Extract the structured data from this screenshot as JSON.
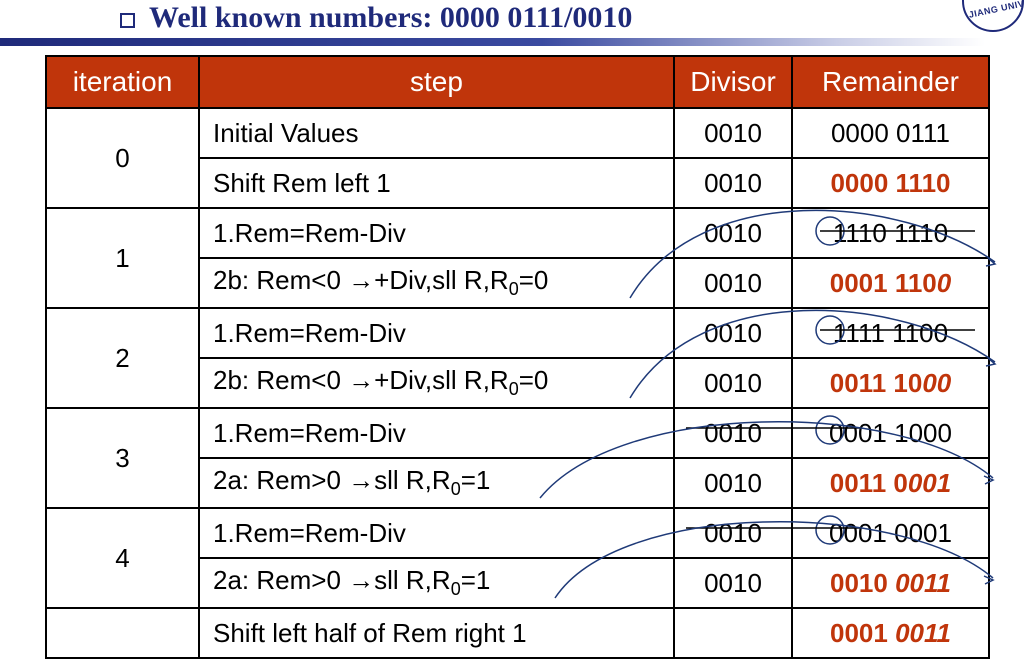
{
  "slide": {
    "title": "Well known numbers: 0000 0111/0010"
  },
  "table": {
    "headers": [
      "iteration",
      "step",
      "Divisor",
      "Remainder"
    ],
    "rows": [
      {
        "iteration": "0",
        "step": "Initial Values",
        "divisor": "0010",
        "remainder": "0000 0111"
      },
      {
        "step": "Shift Rem left 1",
        "divisor": "0010",
        "remainder_bold": "0000 1110"
      },
      {
        "iteration": "1",
        "step": "1.Rem=Rem-Div",
        "divisor": "0010",
        "remainder": "1110 1110"
      },
      {
        "step_prefix": "2b: Rem<0 →+Div,sll R,R",
        "step_sub": "0",
        "step_suffix": "=0",
        "divisor": "0010",
        "remainder_bold": "0001 110",
        "remainder_italic": "0"
      },
      {
        "iteration": "2",
        "step": "1.Rem=Rem-Div",
        "divisor": "0010",
        "remainder": "1111 1100"
      },
      {
        "step_prefix": "2b: Rem<0 →+Div,sll R,R",
        "step_sub": "0",
        "step_suffix": "=0",
        "divisor": "0010",
        "remainder_bold": "0011 10",
        "remainder_italic": "00"
      },
      {
        "iteration": "3",
        "step": "1.Rem=Rem-Div",
        "divisor": "0010",
        "remainder": "0001 1000"
      },
      {
        "step_prefix": "2a: Rem>0 →sll R,R",
        "step_sub": "0",
        "step_suffix": "=1",
        "divisor": "0010",
        "remainder_bold": "0011 0",
        "remainder_italic": "001"
      },
      {
        "iteration": "4",
        "step": "1.Rem=Rem-Div",
        "divisor": "0010",
        "remainder": "0001 0001"
      },
      {
        "step_prefix": "2a: Rem>0 →sll R,R",
        "step_sub": "0",
        "step_suffix": "=1",
        "divisor": "0010",
        "remainder_bold": "0010 ",
        "remainder_italic": "0011"
      },
      {
        "step": "Shift left half of Rem right 1",
        "remainder_bold": "0001 ",
        "remainder_italic": "0011"
      }
    ]
  },
  "colors": {
    "accent": "#c0350b",
    "title": "#1f2a7a"
  }
}
